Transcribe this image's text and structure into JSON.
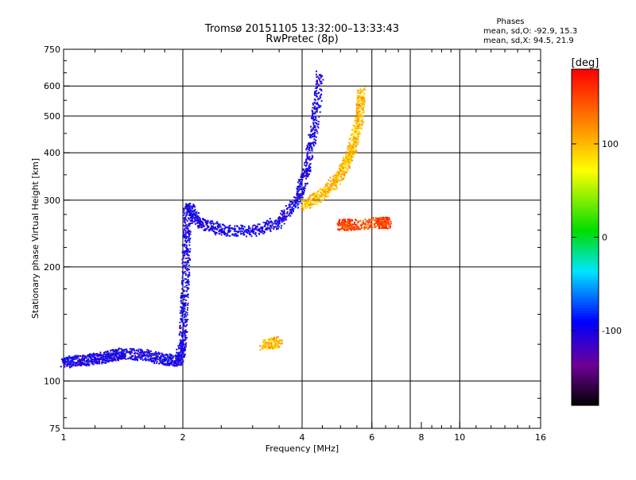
{
  "chart_data": {
    "type": "scatter",
    "title": "Tromsø 20151105 13:32:00–13:33:43",
    "subtitle": "RwPretec (8p)",
    "xlabel": "Frequency [MHz]",
    "ylabel": "Stationary phase Virtual Height [km]",
    "x_scale": "log",
    "y_scale": "log",
    "xlim": [
      1,
      16
    ],
    "ylim": [
      75,
      750
    ],
    "x_ticks": [
      1,
      2,
      4,
      6,
      8,
      10,
      16
    ],
    "x_tick_labels": [
      "1",
      "2",
      "4",
      "6",
      "8",
      "10",
      "16"
    ],
    "x_gridlines": [
      2,
      4,
      6,
      7.5,
      10
    ],
    "y_ticks": [
      75,
      100,
      200,
      300,
      400,
      500,
      600,
      750
    ],
    "y_tick_labels": [
      "75",
      "100",
      "200",
      "300",
      "400",
      "500",
      "600",
      "750"
    ],
    "y_gridlines": [
      100,
      200,
      300,
      400,
      500,
      600
    ],
    "grid": true,
    "stats_header": "Phases",
    "stats_lines": [
      "mean, sd,O:  -92.9, 15.3",
      "mean, sd,X:   94.5, 21.9"
    ],
    "colorbar": {
      "label": "[deg]",
      "min": -180,
      "max": 180,
      "ticks": [
        100,
        0,
        -100
      ],
      "tick_labels": [
        "100",
        "0",
        "-100"
      ],
      "colormap": "rainbow"
    },
    "traces": [
      {
        "kind": "O-mode low trace",
        "phase_deg": -100,
        "points": [
          [
            1.0,
            112
          ],
          [
            1.1,
            113
          ],
          [
            1.2,
            114
          ],
          [
            1.3,
            116
          ],
          [
            1.4,
            118
          ],
          [
            1.6,
            117
          ],
          [
            1.8,
            114
          ],
          [
            1.95,
            113
          ]
        ]
      },
      {
        "kind": "E-region cusp",
        "phase_deg": -100,
        "points": [
          [
            1.95,
            113
          ],
          [
            2.0,
            125
          ],
          [
            2.02,
            160
          ],
          [
            2.04,
            220
          ],
          [
            2.06,
            280
          ]
        ]
      },
      {
        "kind": "F-layer O-mode trace",
        "phase_deg": -100,
        "points": [
          [
            2.05,
            290
          ],
          [
            2.2,
            262
          ],
          [
            2.5,
            250
          ],
          [
            3.0,
            248
          ],
          [
            3.5,
            262
          ],
          [
            3.9,
            300
          ],
          [
            4.1,
            360
          ],
          [
            4.3,
            470
          ],
          [
            4.45,
            640
          ]
        ]
      },
      {
        "kind": "F-layer X-mode trace",
        "phase_deg": 100,
        "points": [
          [
            4.0,
            290
          ],
          [
            4.5,
            310
          ],
          [
            4.9,
            340
          ],
          [
            5.2,
            380
          ],
          [
            5.4,
            420
          ],
          [
            5.6,
            500
          ],
          [
            5.65,
            580
          ]
        ]
      },
      {
        "kind": "Sporadic patch",
        "phase_deg": 100,
        "points": [
          [
            3.2,
            124
          ],
          [
            3.5,
            127
          ]
        ]
      },
      {
        "kind": "Sporadic patch",
        "phase_deg": 150,
        "points": [
          [
            5.0,
            258
          ],
          [
            5.3,
            258
          ],
          [
            6.3,
            261
          ],
          [
            6.6,
            261
          ]
        ]
      }
    ]
  }
}
